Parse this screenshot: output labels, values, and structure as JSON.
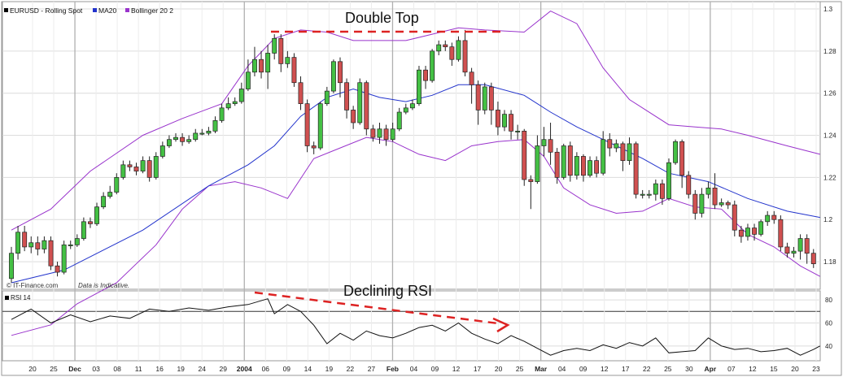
{
  "chart_data": {
    "type": "candlestick",
    "legend": [
      {
        "label": "EURUSD - Rolling Spot",
        "color": "#000000"
      },
      {
        "label": "MA20",
        "color": "#2233cc"
      },
      {
        "label": "Bollinger 20 2",
        "color": "#9933cc"
      }
    ],
    "price_ylim": [
      1.17,
      1.3
    ],
    "price_yticks": [
      "1.18",
      "1.2",
      "1.22",
      "1.24",
      "1.26",
      "1.28",
      "1.3"
    ],
    "annotations": {
      "double_top": "Double Top",
      "declining_rsi": "Declining RSI"
    },
    "watermark_left": "© IT-Finance.com",
    "watermark_right": "Data is Indicative.",
    "rsi_label": "RSI 14",
    "rsi_ylim": [
      30,
      85
    ],
    "rsi_yticks": [
      "40",
      "60",
      "80"
    ],
    "rsi_reference_level": 70,
    "x_ticks": [
      "20",
      "25",
      "Dec",
      "03",
      "08",
      "11",
      "16",
      "19",
      "24",
      "29",
      "2004",
      "06",
      "09",
      "14",
      "19",
      "22",
      "27",
      "Feb",
      "04",
      "09",
      "12",
      "17",
      "20",
      "25",
      "Mar",
      "04",
      "09",
      "12",
      "17",
      "22",
      "25",
      "30",
      "Apr",
      "07",
      "12",
      "15",
      "20",
      "23"
    ],
    "candles": [
      [
        1.172,
        1.184,
        1.17,
        1.187
      ],
      [
        1.184,
        1.194,
        1.181,
        1.197
      ],
      [
        1.194,
        1.187,
        1.185,
        1.197
      ],
      [
        1.187,
        1.189,
        1.184,
        1.192
      ],
      [
        1.189,
        1.186,
        1.183,
        1.192
      ],
      [
        1.186,
        1.19,
        1.184,
        1.192
      ],
      [
        1.19,
        1.178,
        1.176,
        1.192
      ],
      [
        1.178,
        1.175,
        1.173,
        1.18
      ],
      [
        1.175,
        1.188,
        1.174,
        1.19
      ],
      [
        1.188,
        1.188,
        1.186,
        1.19
      ],
      [
        1.188,
        1.191,
        1.187,
        1.193
      ],
      [
        1.191,
        1.199,
        1.19,
        1.201
      ],
      [
        1.199,
        1.198,
        1.196,
        1.201
      ],
      [
        1.198,
        1.206,
        1.197,
        1.208
      ],
      [
        1.206,
        1.211,
        1.205,
        1.213
      ],
      [
        1.211,
        1.213,
        1.21,
        1.216
      ],
      [
        1.213,
        1.22,
        1.212,
        1.222
      ],
      [
        1.22,
        1.226,
        1.219,
        1.228
      ],
      [
        1.226,
        1.225,
        1.223,
        1.228
      ],
      [
        1.225,
        1.223,
        1.221,
        1.227
      ],
      [
        1.223,
        1.228,
        1.222,
        1.23
      ],
      [
        1.228,
        1.22,
        1.218,
        1.23
      ],
      [
        1.22,
        1.23,
        1.219,
        1.232
      ],
      [
        1.23,
        1.235,
        1.229,
        1.237
      ],
      [
        1.235,
        1.238,
        1.234,
        1.24
      ],
      [
        1.238,
        1.239,
        1.237,
        1.241
      ],
      [
        1.239,
        1.237,
        1.235,
        1.241
      ],
      [
        1.237,
        1.238,
        1.236,
        1.24
      ],
      [
        1.238,
        1.241,
        1.237,
        1.243
      ],
      [
        1.241,
        1.241,
        1.24,
        1.243
      ],
      [
        1.241,
        1.242,
        1.24,
        1.244
      ],
      [
        1.242,
        1.247,
        1.241,
        1.249
      ],
      [
        1.247,
        1.253,
        1.246,
        1.255
      ],
      [
        1.253,
        1.255,
        1.252,
        1.258
      ],
      [
        1.255,
        1.256,
        1.254,
        1.258
      ],
      [
        1.256,
        1.262,
        1.255,
        1.265
      ],
      [
        1.262,
        1.27,
        1.261,
        1.276
      ],
      [
        1.27,
        1.276,
        1.268,
        1.282
      ],
      [
        1.276,
        1.27,
        1.267,
        1.28
      ],
      [
        1.27,
        1.279,
        1.262,
        1.283
      ],
      [
        1.279,
        1.286,
        1.276,
        1.288
      ],
      [
        1.286,
        1.274,
        1.27,
        1.288
      ],
      [
        1.274,
        1.277,
        1.272,
        1.28
      ],
      [
        1.277,
        1.265,
        1.263,
        1.279
      ],
      [
        1.265,
        1.255,
        1.252,
        1.268
      ],
      [
        1.255,
        1.235,
        1.232,
        1.257
      ],
      [
        1.235,
        1.234,
        1.231,
        1.237
      ],
      [
        1.234,
        1.255,
        1.233,
        1.256
      ],
      [
        1.255,
        1.261,
        1.254,
        1.263
      ],
      [
        1.261,
        1.275,
        1.26,
        1.276
      ],
      [
        1.275,
        1.265,
        1.258,
        1.277
      ],
      [
        1.265,
        1.252,
        1.248,
        1.267
      ],
      [
        1.252,
        1.246,
        1.243,
        1.254
      ],
      [
        1.246,
        1.265,
        1.245,
        1.267
      ],
      [
        1.265,
        1.243,
        1.24,
        1.266
      ],
      [
        1.243,
        1.239,
        1.237,
        1.245
      ],
      [
        1.239,
        1.243,
        1.236,
        1.246
      ],
      [
        1.243,
        1.238,
        1.235,
        1.245
      ],
      [
        1.238,
        1.243,
        1.237,
        1.246
      ],
      [
        1.243,
        1.251,
        1.242,
        1.253
      ],
      [
        1.251,
        1.253,
        1.25,
        1.255
      ],
      [
        1.253,
        1.255,
        1.252,
        1.257
      ],
      [
        1.255,
        1.271,
        1.254,
        1.273
      ],
      [
        1.271,
        1.266,
        1.262,
        1.273
      ],
      [
        1.266,
        1.28,
        1.265,
        1.281
      ],
      [
        1.28,
        1.283,
        1.278,
        1.285
      ],
      [
        1.283,
        1.282,
        1.28,
        1.285
      ],
      [
        1.282,
        1.276,
        1.273,
        1.284
      ],
      [
        1.276,
        1.285,
        1.275,
        1.287
      ],
      [
        1.285,
        1.27,
        1.268,
        1.29
      ],
      [
        1.27,
        1.264,
        1.255,
        1.272
      ],
      [
        1.264,
        1.252,
        1.245,
        1.266
      ],
      [
        1.252,
        1.263,
        1.25,
        1.265
      ],
      [
        1.263,
        1.252,
        1.245,
        1.265
      ],
      [
        1.252,
        1.244,
        1.24,
        1.256
      ],
      [
        1.244,
        1.25,
        1.242,
        1.252
      ],
      [
        1.25,
        1.242,
        1.238,
        1.252
      ],
      [
        1.242,
        1.242,
        1.238,
        1.245
      ],
      [
        1.242,
        1.219,
        1.216,
        1.243
      ],
      [
        1.219,
        1.218,
        1.205,
        1.221
      ],
      [
        1.218,
        1.235,
        1.217,
        1.24
      ],
      [
        1.235,
        1.238,
        1.23,
        1.244
      ],
      [
        1.238,
        1.232,
        1.226,
        1.246
      ],
      [
        1.232,
        1.22,
        1.217,
        1.234
      ],
      [
        1.22,
        1.235,
        1.219,
        1.236
      ],
      [
        1.235,
        1.221,
        1.218,
        1.237
      ],
      [
        1.221,
        1.23,
        1.219,
        1.232
      ],
      [
        1.23,
        1.221,
        1.218,
        1.231
      ],
      [
        1.221,
        1.228,
        1.22,
        1.23
      ],
      [
        1.228,
        1.222,
        1.22,
        1.23
      ],
      [
        1.222,
        1.238,
        1.221,
        1.242
      ],
      [
        1.238,
        1.234,
        1.23,
        1.241
      ],
      [
        1.234,
        1.236,
        1.232,
        1.238
      ],
      [
        1.236,
        1.228,
        1.223,
        1.237
      ],
      [
        1.228,
        1.236,
        1.226,
        1.239
      ],
      [
        1.236,
        1.212,
        1.21,
        1.237
      ],
      [
        1.212,
        1.212,
        1.21,
        1.214
      ],
      [
        1.212,
        1.212,
        1.21,
        1.214
      ],
      [
        1.212,
        1.217,
        1.209,
        1.219
      ],
      [
        1.217,
        1.21,
        1.207,
        1.219
      ],
      [
        1.21,
        1.227,
        1.209,
        1.229
      ],
      [
        1.227,
        1.237,
        1.226,
        1.238
      ],
      [
        1.237,
        1.221,
        1.215,
        1.238
      ],
      [
        1.221,
        1.212,
        1.21,
        1.223
      ],
      [
        1.212,
        1.203,
        1.2,
        1.214
      ],
      [
        1.203,
        1.212,
        1.201,
        1.215
      ],
      [
        1.212,
        1.215,
        1.21,
        1.218
      ],
      [
        1.215,
        1.207,
        1.205,
        1.222
      ],
      [
        1.207,
        1.208,
        1.206,
        1.21
      ],
      [
        1.208,
        1.207,
        1.205,
        1.209
      ],
      [
        1.207,
        1.195,
        1.192,
        1.209
      ],
      [
        1.195,
        1.192,
        1.189,
        1.197
      ],
      [
        1.192,
        1.196,
        1.19,
        1.198
      ],
      [
        1.196,
        1.193,
        1.19,
        1.198
      ],
      [
        1.193,
        1.199,
        1.192,
        1.2
      ],
      [
        1.199,
        1.202,
        1.197,
        1.204
      ],
      [
        1.202,
        1.2,
        1.198,
        1.204
      ],
      [
        1.2,
        1.187,
        1.185,
        1.202
      ],
      [
        1.187,
        1.184,
        1.182,
        1.189
      ],
      [
        1.184,
        1.185,
        1.182,
        1.187
      ],
      [
        1.185,
        1.191,
        1.181,
        1.193
      ],
      [
        1.191,
        1.184,
        1.179,
        1.193
      ],
      [
        1.184,
        1.179,
        1.177,
        1.186
      ]
    ],
    "ma20": [
      [
        0,
        1.17
      ],
      [
        8,
        1.176
      ],
      [
        20,
        1.195
      ],
      [
        30,
        1.216
      ],
      [
        36,
        1.226
      ],
      [
        40,
        1.235
      ],
      [
        44,
        1.249
      ],
      [
        48,
        1.258
      ],
      [
        52,
        1.262
      ],
      [
        56,
        1.258
      ],
      [
        60,
        1.256
      ],
      [
        64,
        1.259
      ],
      [
        68,
        1.264
      ],
      [
        72,
        1.264
      ],
      [
        78,
        1.259
      ],
      [
        82,
        1.251
      ],
      [
        86,
        1.244
      ],
      [
        90,
        1.238
      ],
      [
        96,
        1.229
      ],
      [
        100,
        1.222
      ],
      [
        106,
        1.218
      ],
      [
        112,
        1.21
      ],
      [
        118,
        1.204
      ],
      [
        123,
        1.201
      ]
    ],
    "bb_upper": [
      [
        0,
        1.195
      ],
      [
        6,
        1.205
      ],
      [
        12,
        1.223
      ],
      [
        20,
        1.24
      ],
      [
        26,
        1.248
      ],
      [
        32,
        1.255
      ],
      [
        36,
        1.273
      ],
      [
        40,
        1.286
      ],
      [
        44,
        1.29
      ],
      [
        48,
        1.289
      ],
      [
        52,
        1.285
      ],
      [
        56,
        1.285
      ],
      [
        60,
        1.285
      ],
      [
        64,
        1.288
      ],
      [
        68,
        1.291
      ],
      [
        72,
        1.29
      ],
      [
        78,
        1.289
      ],
      [
        82,
        1.299
      ],
      [
        86,
        1.293
      ],
      [
        90,
        1.272
      ],
      [
        94,
        1.257
      ],
      [
        100,
        1.245
      ],
      [
        104,
        1.244
      ],
      [
        108,
        1.243
      ],
      [
        112,
        1.24
      ],
      [
        118,
        1.235
      ],
      [
        123,
        1.231
      ]
    ],
    "bb_lower": [
      [
        0,
        1.145
      ],
      [
        6,
        1.15
      ],
      [
        10,
        1.16
      ],
      [
        16,
        1.17
      ],
      [
        22,
        1.188
      ],
      [
        26,
        1.205
      ],
      [
        30,
        1.216
      ],
      [
        34,
        1.218
      ],
      [
        38,
        1.215
      ],
      [
        42,
        1.21
      ],
      [
        46,
        1.229
      ],
      [
        50,
        1.234
      ],
      [
        54,
        1.239
      ],
      [
        58,
        1.237
      ],
      [
        62,
        1.231
      ],
      [
        66,
        1.228
      ],
      [
        70,
        1.235
      ],
      [
        74,
        1.237
      ],
      [
        78,
        1.238
      ],
      [
        81,
        1.23
      ],
      [
        84,
        1.215
      ],
      [
        88,
        1.207
      ],
      [
        92,
        1.203
      ],
      [
        96,
        1.204
      ],
      [
        100,
        1.21
      ],
      [
        104,
        1.206
      ],
      [
        108,
        1.205
      ],
      [
        112,
        1.193
      ],
      [
        116,
        1.187
      ],
      [
        120,
        1.178
      ],
      [
        123,
        1.173
      ]
    ],
    "rsi": [
      [
        0,
        63
      ],
      [
        3,
        72
      ],
      [
        6,
        60
      ],
      [
        9,
        67
      ],
      [
        12,
        61
      ],
      [
        15,
        66
      ],
      [
        18,
        64
      ],
      [
        21,
        72
      ],
      [
        24,
        70
      ],
      [
        27,
        73
      ],
      [
        30,
        71
      ],
      [
        33,
        74
      ],
      [
        36,
        76
      ],
      [
        39,
        81
      ],
      [
        40,
        68
      ],
      [
        42,
        76
      ],
      [
        44,
        70
      ],
      [
        46,
        58
      ],
      [
        48,
        42
      ],
      [
        50,
        51
      ],
      [
        52,
        45
      ],
      [
        54,
        53
      ],
      [
        56,
        49
      ],
      [
        58,
        47
      ],
      [
        60,
        51
      ],
      [
        62,
        56
      ],
      [
        64,
        58
      ],
      [
        66,
        53
      ],
      [
        68,
        60
      ],
      [
        70,
        51
      ],
      [
        72,
        46
      ],
      [
        74,
        42
      ],
      [
        76,
        49
      ],
      [
        78,
        44
      ],
      [
        80,
        38
      ],
      [
        82,
        32
      ],
      [
        84,
        36
      ],
      [
        86,
        38
      ],
      [
        88,
        36
      ],
      [
        90,
        41
      ],
      [
        92,
        38
      ],
      [
        94,
        43
      ],
      [
        96,
        40
      ],
      [
        98,
        47
      ],
      [
        100,
        34
      ],
      [
        102,
        35
      ],
      [
        104,
        36
      ],
      [
        106,
        47
      ],
      [
        108,
        40
      ],
      [
        110,
        37
      ],
      [
        112,
        38
      ],
      [
        114,
        35
      ],
      [
        116,
        36
      ],
      [
        118,
        38
      ],
      [
        120,
        32
      ],
      [
        122,
        37
      ],
      [
        123,
        40
      ]
    ]
  }
}
